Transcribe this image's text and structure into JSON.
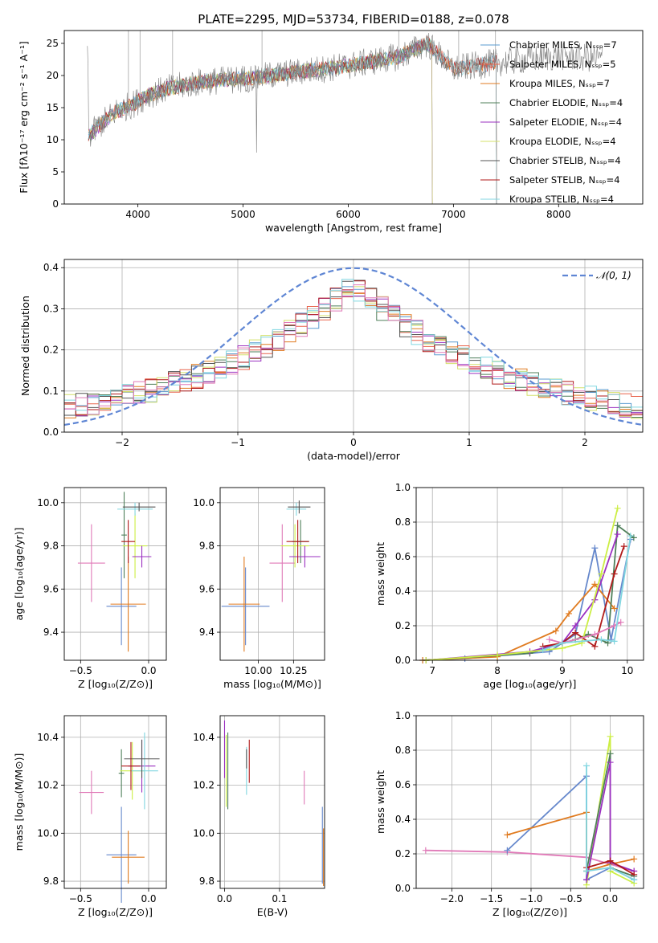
{
  "figure_title": "PLATE=2295, MJD=53734, FIBERID=0188, z=0.078",
  "colors": {
    "Chabrier MILES": "#5a9bd0",
    "Salpeter MILES": "#e8624a",
    "Kroupa MILES": "#e07b20",
    "Chabrier ELODIE": "#4f7f5a",
    "Salpeter ELODIE": "#9b30c0",
    "Kroupa ELODIE": "#d4e06a",
    "Chabrier STELIB": "#555555",
    "Salpeter STELIB": "#b01a1a",
    "Kroupa STELIB": "#80d6e0",
    "pink": "#e07ab8",
    "steel": "#6688cc",
    "yellow": "#ccee44"
  },
  "chart_data": [
    {
      "id": "spectrum",
      "type": "line",
      "title": "PLATE=2295, MJD=53734, FIBERID=0188, z=0.078",
      "xlabel": "wavelength [Angstrom, rest frame]",
      "ylabel": "Flux [fλ10⁻¹⁷ erg cm⁻² s⁻¹ A⁻¹]",
      "xlim": [
        3300,
        8800
      ],
      "ylim": [
        0,
        27
      ],
      "xticks": [
        4000,
        5000,
        6000,
        7000,
        8000
      ],
      "yticks": [
        0,
        5,
        10,
        15,
        20,
        25
      ],
      "legend_position": "upper-right",
      "legend": [
        "Chabrier MILES, Nₛₛₚ=7",
        "Salpeter MILES, Nₛₛₚ=5",
        "Kroupa MILES, Nₛₛₚ=7",
        "Chabrier ELODIE, Nₛₛₚ=4",
        "Salpeter ELODIE, Nₛₛₚ=4",
        "Kroupa ELODIE, Nₛₛₚ=4",
        "Chabrier STELIB, Nₛₛₚ=4",
        "Salpeter STELIB, Nₛₛₚ=4",
        "Kroupa STELIB, Nₛₛₚ=4"
      ],
      "continuum": {
        "x": [
          3530,
          3650,
          3800,
          3950,
          4100,
          4300,
          4600,
          5000,
          5500,
          6000,
          6500,
          6750,
          7000,
          7400,
          8000,
          8500
        ],
        "y": [
          10.5,
          12.5,
          14.5,
          15.5,
          17,
          18,
          19,
          19.5,
          20.5,
          21.5,
          23,
          25,
          21,
          22,
          23,
          22.5
        ]
      }
    },
    {
      "id": "residuals",
      "type": "histogram",
      "xlabel": "(data-model)/error",
      "ylabel": "Normed distribution",
      "xlim": [
        -2.5,
        2.5
      ],
      "ylim": [
        0,
        0.42
      ],
      "xticks": [
        -2,
        -1,
        0,
        1,
        2
      ],
      "yticks": [
        0.0,
        0.1,
        0.2,
        0.3,
        0.4
      ],
      "legend_position": "upper-right",
      "reference_label": "𝒩(0, 1)",
      "bin_width": 0.1
    },
    {
      "id": "age_vs_Z",
      "type": "errorbar",
      "xlabel": "Z [log₁₀(Z/Z⊙)]",
      "ylabel": "age  [log₁₀(age/yr)]",
      "xlim": [
        -0.62,
        0.13
      ],
      "ylim": [
        9.27,
        10.07
      ],
      "xticks": [
        -0.5,
        0.0
      ],
      "yticks": [
        9.4,
        9.6,
        9.8,
        10.0
      ],
      "points": [
        {
          "c": "pink",
          "x": -0.42,
          "xe": 0.1,
          "y": 9.72,
          "ye": 0.18
        },
        {
          "c": "steel",
          "x": -0.2,
          "xe": 0.11,
          "y": 9.52,
          "ye": 0.18
        },
        {
          "c": "Kroupa MILES",
          "x": -0.15,
          "xe": 0.13,
          "y": 9.53,
          "ye": 0.22
        },
        {
          "c": "Chabrier ELODIE",
          "x": -0.18,
          "xe": 0.02,
          "y": 9.85,
          "ye": 0.2
        },
        {
          "c": "yellow",
          "x": -0.1,
          "xe": 0.09,
          "y": 9.8,
          "ye": 0.15
        },
        {
          "c": "Salpeter ELODIE",
          "x": -0.05,
          "xe": 0.07,
          "y": 9.75,
          "ye": 0.05
        },
        {
          "c": "Kroupa STELIB",
          "x": -0.1,
          "xe": 0.13,
          "y": 9.97,
          "ye": 0.03
        },
        {
          "c": "Chabrier STELIB",
          "x": -0.07,
          "xe": 0.12,
          "y": 9.98,
          "ye": 0.02
        },
        {
          "c": "Salpeter STELIB",
          "x": -0.15,
          "xe": 0.05,
          "y": 9.82,
          "ye": 0.1
        }
      ]
    },
    {
      "id": "age_vs_mass",
      "type": "errorbar",
      "xlabel": "mass [log₁₀(M/M⊙)]",
      "ylabel": "",
      "xlim": [
        9.73,
        10.47
      ],
      "ylim": [
        9.27,
        10.07
      ],
      "xticks": [
        10.0,
        10.25
      ],
      "yticks": [
        9.4,
        9.6,
        9.8,
        10.0
      ],
      "points": [
        {
          "c": "pink",
          "x": 10.17,
          "xe": 0.09,
          "y": 9.72,
          "ye": 0.18
        },
        {
          "c": "steel",
          "x": 9.91,
          "xe": 0.17,
          "y": 9.52,
          "ye": 0.18
        },
        {
          "c": "Kroupa MILES",
          "x": 9.9,
          "xe": 0.11,
          "y": 9.53,
          "ye": 0.22
        },
        {
          "c": "Chabrier ELODIE",
          "x": 10.3,
          "xe": 0.06,
          "y": 9.82,
          "ye": 0.1
        },
        {
          "c": "yellow",
          "x": 10.26,
          "xe": 0.1,
          "y": 9.8,
          "ye": 0.1
        },
        {
          "c": "Salpeter ELODIE",
          "x": 10.33,
          "xe": 0.11,
          "y": 9.75,
          "ye": 0.05
        },
        {
          "c": "Kroupa STELIB",
          "x": 10.27,
          "xe": 0.07,
          "y": 9.97,
          "ye": 0.03
        },
        {
          "c": "Chabrier STELIB",
          "x": 10.29,
          "xe": 0.08,
          "y": 9.98,
          "ye": 0.03
        },
        {
          "c": "Salpeter STELIB",
          "x": 10.28,
          "xe": 0.08,
          "y": 9.82,
          "ye": 0.1
        }
      ]
    },
    {
      "id": "massweight_vs_age",
      "type": "line",
      "xlabel": "age  [log₁₀(age/yr)]",
      "ylabel": "mass weight",
      "xlim": [
        6.75,
        10.25
      ],
      "ylim": [
        0,
        1.0
      ],
      "xticks": [
        7,
        8,
        9,
        10
      ],
      "yticks": [
        0.0,
        0.2,
        0.4,
        0.6,
        0.8,
        1.0
      ],
      "series": [
        {
          "c": "steel",
          "x": [
            6.85,
            7.5,
            8.8,
            9.0,
            9.2,
            9.5,
            9.75,
            10.05
          ],
          "y": [
            0,
            0.01,
            0.05,
            0.1,
            0.15,
            0.65,
            0.12,
            0.7
          ]
        },
        {
          "c": "Kroupa MILES",
          "x": [
            6.85,
            8.0,
            8.9,
            9.1,
            9.5,
            9.8
          ],
          "y": [
            0,
            0.02,
            0.17,
            0.27,
            0.44,
            0.3
          ]
        },
        {
          "c": "Chabrier ELODIE",
          "x": [
            6.9,
            8.5,
            9.2,
            9.4,
            9.7,
            9.85,
            10.1
          ],
          "y": [
            0,
            0.04,
            0.12,
            0.15,
            0.1,
            0.78,
            0.71
          ]
        },
        {
          "c": "Salpeter ELODIE",
          "x": [
            6.9,
            8.5,
            9.0,
            9.2,
            9.5,
            9.85
          ],
          "y": [
            0,
            0.05,
            0.1,
            0.2,
            0.35,
            0.73
          ]
        },
        {
          "c": "yellow",
          "x": [
            6.9,
            8.0,
            9.0,
            9.3,
            9.6,
            9.85
          ],
          "y": [
            0,
            0.03,
            0.07,
            0.1,
            0.5,
            0.88
          ]
        },
        {
          "c": "Salpeter STELIB",
          "x": [
            8.7,
            9.0,
            9.2,
            9.5,
            9.8,
            9.95
          ],
          "y": [
            0.08,
            0.1,
            0.16,
            0.08,
            0.5,
            0.66
          ]
        },
        {
          "c": "pink",
          "x": [
            8.8,
            9.0,
            9.5,
            9.8,
            9.9
          ],
          "y": [
            0.12,
            0.1,
            0.15,
            0.2,
            0.22
          ]
        },
        {
          "c": "Kroupa STELIB",
          "x": [
            8.7,
            9.0,
            9.6,
            9.8,
            10.05
          ],
          "y": [
            0.06,
            0.1,
            0.12,
            0.11,
            0.72
          ]
        }
      ]
    },
    {
      "id": "mass_vs_Z",
      "type": "errorbar",
      "xlabel": "Z [log₁₀(Z/Z⊙)]",
      "ylabel": "mass [log₁₀(M/M⊙)]",
      "xlim": [
        -0.62,
        0.13
      ],
      "ylim": [
        9.77,
        10.49
      ],
      "xticks": [
        -0.5,
        0.0
      ],
      "yticks": [
        9.8,
        10.0,
        10.2,
        10.4
      ],
      "points": [
        {
          "c": "pink",
          "x": -0.42,
          "xe": 0.09,
          "y": 10.17,
          "ye": 0.09
        },
        {
          "c": "steel",
          "x": -0.2,
          "xe": 0.11,
          "y": 9.91,
          "ye": 0.2
        },
        {
          "c": "Kroupa MILES",
          "x": -0.15,
          "xe": 0.12,
          "y": 9.9,
          "ye": 0.11
        },
        {
          "c": "Chabrier ELODIE",
          "x": -0.2,
          "xe": 0.02,
          "y": 10.25,
          "ye": 0.1
        },
        {
          "c": "yellow",
          "x": -0.12,
          "xe": 0.09,
          "y": 10.26,
          "ye": 0.12
        },
        {
          "c": "Salpeter ELODIE",
          "x": -0.05,
          "xe": 0.1,
          "y": 10.28,
          "ye": 0.11
        },
        {
          "c": "Kroupa STELIB",
          "x": -0.03,
          "xe": 0.1,
          "y": 10.26,
          "ye": 0.16
        },
        {
          "c": "Chabrier STELIB",
          "x": -0.05,
          "xe": 0.13,
          "y": 10.31,
          "ye": 0.08
        },
        {
          "c": "Salpeter STELIB",
          "x": -0.13,
          "xe": 0.07,
          "y": 10.28,
          "ye": 0.1
        }
      ]
    },
    {
      "id": "mass_vs_ebv",
      "type": "errorbar",
      "xlabel": "E(B-V)",
      "ylabel": "",
      "xlim": [
        -0.008,
        0.182
      ],
      "ylim": [
        9.77,
        10.49
      ],
      "xticks": [
        0.0,
        0.1
      ],
      "yticks": [
        9.8,
        10.0,
        10.2,
        10.4
      ],
      "points": [
        {
          "c": "Salpeter ELODIE",
          "x": 0.0,
          "xe": 0.0,
          "y": 10.35,
          "ye": 0.12
        },
        {
          "c": "yellow",
          "x": 0.003,
          "xe": 0.0,
          "y": 10.26,
          "ye": 0.15
        },
        {
          "c": "Chabrier ELODIE",
          "x": 0.006,
          "xe": 0.0,
          "y": 10.26,
          "ye": 0.16
        },
        {
          "c": "Kroupa STELIB",
          "x": 0.04,
          "xe": 0.0,
          "y": 10.26,
          "ye": 0.1
        },
        {
          "c": "Chabrier STELIB",
          "x": 0.04,
          "xe": 0.0,
          "y": 10.31,
          "ye": 0.04
        },
        {
          "c": "Salpeter STELIB",
          "x": 0.045,
          "xe": 0.0,
          "y": 10.3,
          "ye": 0.09
        },
        {
          "c": "pink",
          "x": 0.145,
          "xe": 0.0,
          "y": 10.19,
          "ye": 0.07
        },
        {
          "c": "steel",
          "x": 0.178,
          "xe": 0.0,
          "y": 9.95,
          "ye": 0.16
        },
        {
          "c": "Kroupa MILES",
          "x": 0.18,
          "xe": 0.0,
          "y": 9.9,
          "ye": 0.12
        }
      ]
    },
    {
      "id": "massweight_vs_Z",
      "type": "line",
      "xlabel": "Z [log₁₀(Z/Z⊙)]",
      "ylabel": "mass weight",
      "xlim": [
        -2.45,
        0.42
      ],
      "ylim": [
        0,
        1.0
      ],
      "xticks": [
        -2.0,
        -1.5,
        -1.0,
        -0.5,
        0.0
      ],
      "yticks": [
        0.0,
        0.2,
        0.4,
        0.6,
        0.8,
        1.0
      ],
      "series": [
        {
          "c": "pink",
          "x": [
            -2.33,
            -1.3,
            -0.3,
            0.3
          ],
          "y": [
            0.22,
            0.21,
            0.18,
            0.1
          ]
        },
        {
          "c": "steel",
          "x": [
            -1.3,
            -0.3,
            -0.3,
            0.0,
            0.3
          ],
          "y": [
            0.22,
            0.65,
            0.05,
            0.12,
            0.05
          ]
        },
        {
          "c": "Kroupa MILES",
          "x": [
            -1.3,
            -0.3,
            -0.3,
            0.0,
            0.3
          ],
          "y": [
            0.31,
            0.44,
            0.1,
            0.14,
            0.17
          ]
        },
        {
          "c": "yellow",
          "x": [
            -0.3,
            0.0,
            0.0,
            0.3
          ],
          "y": [
            0.02,
            0.88,
            0.1,
            0.03
          ]
        },
        {
          "c": "Chabrier ELODIE",
          "x": [
            -0.3,
            0.0,
            0.0,
            0.3
          ],
          "y": [
            0.1,
            0.78,
            0.12,
            0.07
          ]
        },
        {
          "c": "Salpeter ELODIE",
          "x": [
            -0.3,
            0.0,
            0.0,
            0.3
          ],
          "y": [
            0.05,
            0.73,
            0.15,
            0.1
          ]
        },
        {
          "c": "Salpeter STELIB",
          "x": [
            -0.3,
            0.0,
            0.3
          ],
          "y": [
            0.12,
            0.16,
            0.08
          ]
        },
        {
          "c": "Kroupa STELIB",
          "x": [
            -0.3,
            -0.3,
            0.0,
            0.3
          ],
          "y": [
            0.71,
            0.1,
            0.12,
            0.05
          ]
        }
      ]
    }
  ]
}
